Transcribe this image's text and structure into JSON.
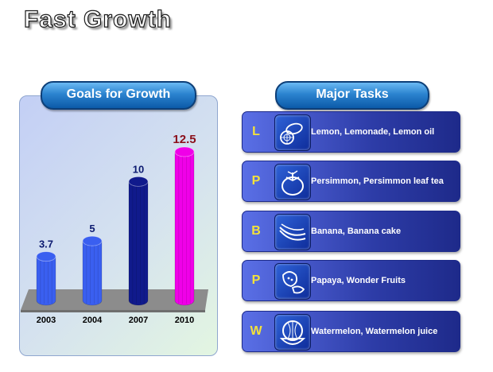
{
  "title": "Fast Growth",
  "goals_label": "Goals for Growth",
  "tasks_label": "Major Tasks",
  "chart_data": {
    "type": "bar",
    "categories": [
      "2003",
      "2004",
      "2007",
      "2010"
    ],
    "values": [
      3.7,
      5,
      10,
      12.5
    ],
    "value_labels": [
      "3.7",
      "5",
      "10",
      "12.5"
    ],
    "colors": [
      "#3a5ff0",
      "#3a5ff0",
      "#101a8c",
      "#f000e8"
    ],
    "label_colors": [
      "#0c1a70",
      "#0c1a70",
      "#0c1a70",
      "#8b0f1a"
    ],
    "title": "",
    "xlabel": "",
    "ylabel": "",
    "ylim": [
      0,
      13.5
    ],
    "grid": false
  },
  "tasks": [
    {
      "letter": "L",
      "label": "Lemon, Lemonade, Lemon oil",
      "icon": "lemon-icon"
    },
    {
      "letter": "P",
      "label": "Persimmon, Persimmon leaf tea",
      "icon": "persimmon-icon"
    },
    {
      "letter": "B",
      "label": "Banana, Banana cake",
      "icon": "banana-icon"
    },
    {
      "letter": "P",
      "label": "Papaya, Wonder Fruits",
      "icon": "papaya-icon"
    },
    {
      "letter": "W",
      "label": "Watermelon, Watermelon juice",
      "icon": "watermelon-icon"
    }
  ]
}
